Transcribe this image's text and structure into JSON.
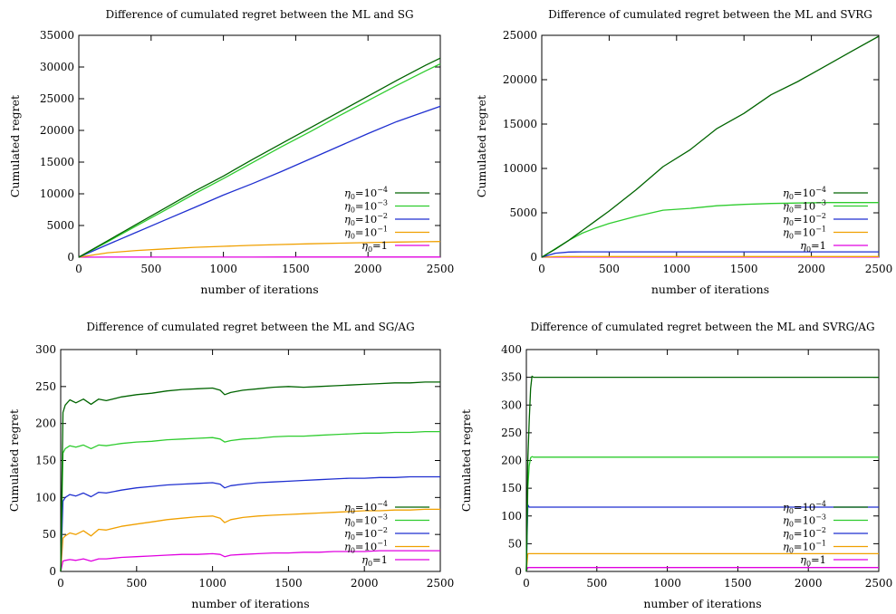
{
  "chart_data": [
    {
      "type": "line",
      "title": "Difference of cumulated regret between the ML and SG",
      "xlabel": "number of iterations",
      "ylabel": "Cumulated regret",
      "xlim": [
        0,
        2500
      ],
      "ylim": [
        0,
        35000
      ],
      "xticks": [
        0,
        500,
        1000,
        1500,
        2000,
        2500
      ],
      "yticks": [
        0,
        5000,
        10000,
        15000,
        20000,
        25000,
        30000,
        35000
      ],
      "grid": false,
      "legend_position": "bottom-right",
      "x": [
        0,
        200,
        400,
        600,
        800,
        1000,
        1200,
        1400,
        1600,
        1800,
        2000,
        2200,
        2400,
        2500
      ],
      "series": [
        {
          "name": "η0=10^-4",
          "base": "η",
          "sub": "0",
          "eq": "=",
          "mant": "10",
          "exp": "−4",
          "color": "#006400",
          "values": [
            0,
            2600,
            5200,
            7800,
            10400,
            12800,
            15400,
            17900,
            20400,
            22900,
            25400,
            27900,
            30300,
            31400
          ]
        },
        {
          "name": "η0=10^-3",
          "base": "η",
          "sub": "0",
          "eq": "=",
          "mant": "10",
          "exp": "−3",
          "color": "#2ecc2e",
          "values": [
            0,
            2450,
            4950,
            7450,
            10000,
            12400,
            14900,
            17400,
            19800,
            22300,
            24700,
            27100,
            29400,
            30500
          ]
        },
        {
          "name": "η0=10^-2",
          "base": "η",
          "sub": "0",
          "eq": "=",
          "mant": "10",
          "exp": "−2",
          "color": "#1f2fd0",
          "values": [
            0,
            2000,
            3950,
            5900,
            7850,
            9800,
            11600,
            13500,
            15500,
            17500,
            19500,
            21400,
            23000,
            23800
          ]
        },
        {
          "name": "η0=10^-1",
          "base": "η",
          "sub": "0",
          "eq": "=",
          "mant": "10",
          "exp": "−1",
          "color": "#f0a000",
          "values": [
            0,
            700,
            1050,
            1320,
            1560,
            1720,
            1870,
            2000,
            2120,
            2220,
            2300,
            2380,
            2440,
            2470
          ]
        },
        {
          "name": "η0=1",
          "base": "η",
          "sub": "0",
          "eq": "=1",
          "mant": "",
          "exp": "",
          "color": "#e000e0",
          "values": [
            0,
            10,
            12,
            14,
            16,
            18,
            20,
            22,
            24,
            26,
            28,
            30,
            32,
            33
          ]
        }
      ]
    },
    {
      "type": "line",
      "title": "Difference of cumulated regret between the ML and SVRG",
      "xlabel": "number of iterations",
      "ylabel": "Cumulated regret",
      "xlim": [
        0,
        2500
      ],
      "ylim": [
        0,
        25000
      ],
      "xticks": [
        0,
        500,
        1000,
        1500,
        2000,
        2500
      ],
      "yticks": [
        0,
        5000,
        10000,
        15000,
        20000,
        25000
      ],
      "grid": false,
      "legend_position": "bottom-right",
      "x": [
        0,
        100,
        200,
        300,
        400,
        500,
        700,
        900,
        1100,
        1300,
        1500,
        1700,
        1900,
        2100,
        2300,
        2500
      ],
      "series": [
        {
          "name": "η0=10^-4",
          "base": "η",
          "sub": "0",
          "eq": "=",
          "mant": "10",
          "exp": "−4",
          "color": "#006400",
          "values": [
            0,
            900,
            1900,
            3000,
            4100,
            5200,
            7600,
            10200,
            12100,
            14500,
            16200,
            18300,
            19800,
            21500,
            23200,
            24900
          ]
        },
        {
          "name": "η0=10^-3",
          "base": "η",
          "sub": "0",
          "eq": "=",
          "mant": "10",
          "exp": "−3",
          "color": "#2ecc2e",
          "values": [
            0,
            950,
            1900,
            2700,
            3300,
            3800,
            4600,
            5300,
            5500,
            5800,
            5950,
            6050,
            6100,
            6150,
            6150,
            6150
          ]
        },
        {
          "name": "η0=10^-2",
          "base": "η",
          "sub": "0",
          "eq": "=",
          "mant": "10",
          "exp": "−2",
          "color": "#1f2fd0",
          "values": [
            0,
            450,
            580,
            600,
            600,
            600,
            600,
            600,
            600,
            600,
            600,
            600,
            600,
            600,
            600,
            600
          ]
        },
        {
          "name": "η0=10^-1",
          "base": "η",
          "sub": "0",
          "eq": "=",
          "mant": "10",
          "exp": "−1",
          "color": "#f0a000",
          "values": [
            0,
            60,
            70,
            70,
            70,
            70,
            70,
            70,
            70,
            70,
            70,
            70,
            70,
            70,
            70,
            70
          ]
        },
        {
          "name": "η0=1",
          "base": "η",
          "sub": "0",
          "eq": "=1",
          "mant": "",
          "exp": "",
          "color": "#e000e0",
          "values": [
            0,
            10,
            10,
            10,
            10,
            10,
            10,
            10,
            10,
            10,
            10,
            10,
            10,
            10,
            10,
            10
          ]
        }
      ]
    },
    {
      "type": "line",
      "title": "Difference of cumulated regret between the ML and SG/AG",
      "xlabel": "number of iterations",
      "ylabel": "Cumulated regret",
      "xlim": [
        0,
        2500
      ],
      "ylim": [
        0,
        300
      ],
      "xticks": [
        0,
        500,
        1000,
        1500,
        2000,
        2500
      ],
      "yticks": [
        0,
        50,
        100,
        150,
        200,
        250,
        300
      ],
      "grid": false,
      "legend_position": "bottom-right",
      "x": [
        0,
        15,
        30,
        60,
        100,
        150,
        200,
        250,
        300,
        400,
        500,
        600,
        700,
        800,
        900,
        1000,
        1050,
        1080,
        1120,
        1200,
        1300,
        1400,
        1500,
        1600,
        1700,
        1800,
        1900,
        2000,
        2100,
        2200,
        2300,
        2400,
        2500
      ],
      "series": [
        {
          "name": "η0=10^-4",
          "base": "η",
          "sub": "0",
          "eq": "=",
          "mant": "10",
          "exp": "−4",
          "color": "#006400",
          "values": [
            0,
            215,
            225,
            232,
            228,
            233,
            226,
            233,
            231,
            236,
            239,
            241,
            244,
            246,
            247,
            248,
            245,
            239,
            242,
            245,
            247,
            249,
            250,
            249,
            250,
            251,
            252,
            253,
            254,
            255,
            255,
            256,
            256
          ]
        },
        {
          "name": "η0=10^-3",
          "base": "η",
          "sub": "0",
          "eq": "=",
          "mant": "10",
          "exp": "−3",
          "color": "#2ecc2e",
          "values": [
            0,
            160,
            166,
            170,
            168,
            171,
            166,
            171,
            170,
            173,
            175,
            176,
            178,
            179,
            180,
            181,
            179,
            175,
            177,
            179,
            180,
            182,
            183,
            183,
            184,
            185,
            186,
            187,
            187,
            188,
            188,
            189,
            189
          ]
        },
        {
          "name": "η0=10^-2",
          "base": "η",
          "sub": "0",
          "eq": "=",
          "mant": "10",
          "exp": "−2",
          "color": "#1f2fd0",
          "values": [
            0,
            95,
            100,
            104,
            102,
            106,
            101,
            107,
            106,
            110,
            113,
            115,
            117,
            118,
            119,
            120,
            118,
            113,
            116,
            118,
            120,
            121,
            122,
            123,
            124,
            125,
            126,
            126,
            127,
            127,
            128,
            128,
            128
          ]
        },
        {
          "name": "η0=10^-1",
          "base": "η",
          "sub": "0",
          "eq": "=",
          "mant": "10",
          "exp": "−1",
          "color": "#f0a000",
          "values": [
            0,
            45,
            48,
            52,
            50,
            55,
            48,
            57,
            56,
            61,
            64,
            67,
            70,
            72,
            74,
            75,
            72,
            66,
            70,
            73,
            75,
            76,
            77,
            78,
            79,
            80,
            81,
            82,
            82,
            83,
            83,
            84,
            84
          ]
        },
        {
          "name": "η0=1",
          "base": "η",
          "sub": "0",
          "eq": "=1",
          "mant": "",
          "exp": "",
          "color": "#e000e0",
          "values": [
            0,
            14,
            15,
            16,
            15,
            17,
            14,
            17,
            17,
            19,
            20,
            21,
            22,
            23,
            23,
            24,
            23,
            20,
            22,
            23,
            24,
            25,
            25,
            26,
            26,
            27,
            27,
            27,
            28,
            28,
            28,
            28,
            28
          ]
        }
      ]
    },
    {
      "type": "line",
      "title": "Difference of cumulated regret between the ML and SVRG/AG",
      "xlabel": "number of iterations",
      "ylabel": "Cumulated regret",
      "xlim": [
        0,
        2500
      ],
      "ylim": [
        0,
        400
      ],
      "xticks": [
        0,
        500,
        1000,
        1500,
        2000,
        2500
      ],
      "yticks": [
        0,
        50,
        100,
        150,
        200,
        250,
        300,
        350,
        400
      ],
      "grid": false,
      "legend_position": "bottom-right",
      "x": [
        0,
        10,
        20,
        30,
        40,
        50,
        100,
        500,
        1000,
        1500,
        2000,
        2500
      ],
      "series": [
        {
          "name": "η0=10^-4",
          "base": "η",
          "sub": "0",
          "eq": "=",
          "mant": "10",
          "exp": "−4",
          "color": "#006400",
          "values": [
            0,
            200,
            270,
            330,
            352,
            350,
            350,
            350,
            350,
            350,
            350,
            350
          ]
        },
        {
          "name": "η0=10^-3",
          "base": "η",
          "sub": "0",
          "eq": "=",
          "mant": "10",
          "exp": "−3",
          "color": "#2ecc2e",
          "values": [
            0,
            150,
            190,
            205,
            207,
            206,
            206,
            206,
            206,
            206,
            206,
            206
          ]
        },
        {
          "name": "η0=10^-2",
          "base": "η",
          "sub": "0",
          "eq": "=",
          "mant": "10",
          "exp": "−2",
          "color": "#1f2fd0",
          "values": [
            0,
            120,
            116,
            116,
            116,
            116,
            116,
            116,
            116,
            116,
            116,
            116
          ]
        },
        {
          "name": "η0=10^-1",
          "base": "η",
          "sub": "0",
          "eq": "=",
          "mant": "10",
          "exp": "−1",
          "color": "#f0a000",
          "values": [
            0,
            32,
            32,
            32,
            32,
            32,
            32,
            32,
            32,
            32,
            32,
            32
          ]
        },
        {
          "name": "η0=1",
          "base": "η",
          "sub": "0",
          "eq": "=1",
          "mant": "",
          "exp": "",
          "color": "#e000e0",
          "values": [
            0,
            7,
            7,
            7,
            7,
            7,
            7,
            7,
            7,
            7,
            7,
            7
          ]
        }
      ]
    }
  ]
}
